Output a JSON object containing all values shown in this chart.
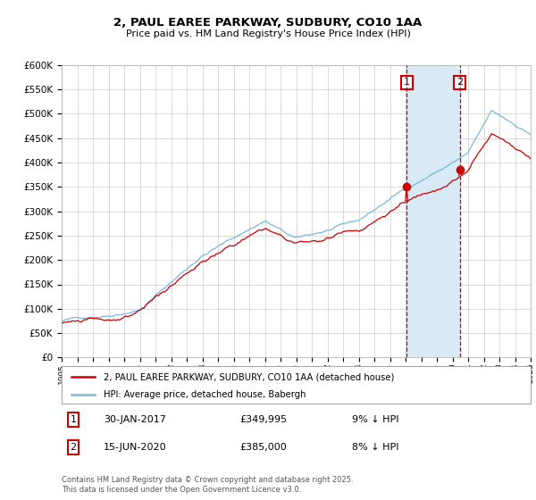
{
  "title_line1": "2, PAUL EAREE PARKWAY, SUDBURY, CO10 1AA",
  "title_line2": "Price paid vs. HM Land Registry's House Price Index (HPI)",
  "legend_label1": "2, PAUL EAREE PARKWAY, SUDBURY, CO10 1AA (detached house)",
  "legend_label2": "HPI: Average price, detached house, Babergh",
  "annotation1_label": "1",
  "annotation1_date": "30-JAN-2017",
  "annotation1_price": "£349,995",
  "annotation1_hpi": "9% ↓ HPI",
  "annotation2_label": "2",
  "annotation2_date": "15-JUN-2020",
  "annotation2_price": "£385,000",
  "annotation2_hpi": "8% ↓ HPI",
  "footer": "Contains HM Land Registry data © Crown copyright and database right 2025.\nThis data is licensed under the Open Government Licence v3.0.",
  "line1_color": "#cc0000",
  "line2_color": "#7ab8d9",
  "shade_color": "#d8eaf5",
  "vline_color": "#cc0000",
  "dot_color": "#cc0000",
  "annotation_box_color": "#cc0000",
  "grid_color": "#cccccc",
  "background_color": "#ffffff",
  "ylim": [
    0,
    600000
  ],
  "ytick_step": 50000,
  "start_year": 1995,
  "end_year": 2025,
  "sale1_year": 2017.08,
  "sale1_price": 349995,
  "sale2_year": 2020.46,
  "sale2_price": 385000
}
